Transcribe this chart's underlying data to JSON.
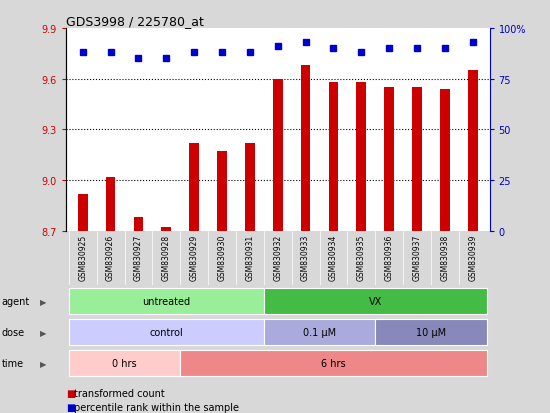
{
  "title": "GDS3998 / 225780_at",
  "samples": [
    "GSM830925",
    "GSM830926",
    "GSM830927",
    "GSM830928",
    "GSM830929",
    "GSM830930",
    "GSM830931",
    "GSM830932",
    "GSM830933",
    "GSM830934",
    "GSM830935",
    "GSM830936",
    "GSM830937",
    "GSM830938",
    "GSM830939"
  ],
  "bar_values": [
    8.92,
    9.02,
    8.78,
    8.72,
    9.22,
    9.17,
    9.22,
    9.6,
    9.68,
    9.58,
    9.58,
    9.55,
    9.55,
    9.54,
    9.65
  ],
  "percentile_values": [
    88,
    88,
    85,
    85,
    88,
    88,
    88,
    91,
    93,
    90,
    88,
    90,
    90,
    90,
    93
  ],
  "ylim_left": [
    8.7,
    9.9
  ],
  "ylim_right": [
    0,
    100
  ],
  "yticks_left": [
    8.7,
    9.0,
    9.3,
    9.6,
    9.9
  ],
  "yticks_right": [
    0,
    25,
    50,
    75,
    100
  ],
  "bar_color": "#cc0000",
  "dot_color": "#0000cc",
  "background_color": "#d8d8d8",
  "plot_bg_color": "#ffffff",
  "agent_colors": [
    "#99ee99",
    "#44bb44"
  ],
  "agent_texts": [
    "untreated",
    "VX"
  ],
  "agent_ranges": [
    [
      0,
      6
    ],
    [
      7,
      14
    ]
  ],
  "dose_colors": [
    "#ccccff",
    "#aaaadd",
    "#8888bb"
  ],
  "dose_texts": [
    "control",
    "0.1 μM",
    "10 μM"
  ],
  "dose_ranges": [
    [
      0,
      6
    ],
    [
      7,
      10
    ],
    [
      11,
      14
    ]
  ],
  "time_colors": [
    "#ffcccc",
    "#ee8888"
  ],
  "time_texts": [
    "0 hrs",
    "6 hrs"
  ],
  "time_ranges": [
    [
      0,
      3
    ],
    [
      4,
      14
    ]
  ],
  "legend_bar_color": "#cc0000",
  "legend_dot_color": "#0000cc",
  "legend_bar_text": "transformed count",
  "legend_dot_text": "percentile rank within the sample",
  "row_labels": [
    "agent",
    "dose",
    "time"
  ],
  "dotted_lines": [
    9.0,
    9.3,
    9.6
  ],
  "bar_width": 0.35
}
